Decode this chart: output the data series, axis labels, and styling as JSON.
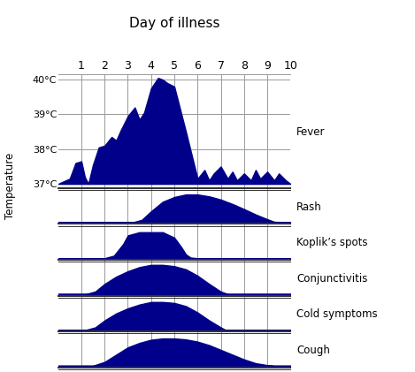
{
  "title": "Day of illness",
  "temp_ylabel": "Temperature",
  "day_labels": [
    "1",
    "2",
    "3",
    "4",
    "5",
    "6",
    "7",
    "8",
    "9",
    "10"
  ],
  "temp_yticks": [
    37,
    38,
    39,
    40
  ],
  "temp_ytick_labels": [
    "37°C",
    "38°C",
    "39°C",
    "40°C"
  ],
  "fill_color": "#00008B",
  "bg_color": "#ffffff",
  "grid_color": "#999999",
  "border_color": "#333333",
  "fever_x": [
    0.0,
    0.5,
    0.75,
    1.0,
    1.15,
    1.3,
    1.5,
    1.75,
    2.0,
    2.3,
    2.5,
    2.7,
    3.0,
    3.3,
    3.5,
    3.7,
    4.0,
    4.3,
    4.5,
    4.7,
    5.0,
    5.5,
    6.0,
    6.3,
    6.5,
    6.7,
    7.0,
    7.3,
    7.5,
    7.7,
    8.0,
    8.3,
    8.5,
    8.7,
    9.0,
    9.3,
    9.5,
    9.8,
    10.0
  ],
  "fever_y": [
    37.0,
    37.15,
    37.6,
    37.65,
    37.2,
    37.0,
    37.55,
    38.05,
    38.1,
    38.35,
    38.25,
    38.55,
    38.95,
    39.2,
    38.85,
    39.05,
    39.75,
    40.05,
    40.0,
    39.9,
    39.8,
    38.5,
    37.15,
    37.4,
    37.1,
    37.3,
    37.5,
    37.15,
    37.35,
    37.1,
    37.3,
    37.1,
    37.4,
    37.15,
    37.35,
    37.1,
    37.3,
    37.1,
    37.0
  ],
  "rash_x": [
    0,
    3.2,
    3.6,
    4.0,
    4.5,
    5.0,
    5.5,
    6.0,
    6.5,
    7.0,
    7.5,
    8.0,
    8.5,
    9.0,
    9.3,
    10
  ],
  "rash_y": [
    0,
    0,
    0.08,
    0.35,
    0.65,
    0.8,
    0.88,
    0.88,
    0.82,
    0.72,
    0.58,
    0.42,
    0.25,
    0.1,
    0.02,
    0
  ],
  "koplik_x": [
    0,
    2.0,
    2.4,
    2.8,
    3.0,
    3.5,
    4.0,
    4.5,
    5.0,
    5.3,
    5.5,
    5.7,
    6.0,
    10
  ],
  "koplik_y": [
    0,
    0,
    0.08,
    0.45,
    0.72,
    0.82,
    0.82,
    0.82,
    0.65,
    0.35,
    0.12,
    0.02,
    0.0,
    0
  ],
  "conjunctivitis_x": [
    0,
    1.2,
    1.6,
    2.0,
    2.5,
    3.0,
    3.5,
    4.0,
    4.5,
    5.0,
    5.5,
    6.0,
    6.5,
    7.0,
    7.3,
    10
  ],
  "conjunctivitis_y": [
    0,
    0,
    0.08,
    0.32,
    0.55,
    0.72,
    0.85,
    0.92,
    0.92,
    0.88,
    0.78,
    0.58,
    0.32,
    0.08,
    0.0,
    0
  ],
  "cold_x": [
    0,
    1.2,
    1.6,
    2.0,
    2.5,
    3.0,
    3.5,
    4.0,
    4.5,
    5.0,
    5.5,
    6.0,
    6.5,
    7.0,
    7.2,
    10
  ],
  "cold_y": [
    0,
    0,
    0.08,
    0.3,
    0.52,
    0.68,
    0.8,
    0.88,
    0.88,
    0.85,
    0.75,
    0.55,
    0.3,
    0.08,
    0.0,
    0
  ],
  "cough_x": [
    0,
    1.5,
    2.0,
    2.5,
    3.0,
    3.5,
    4.0,
    4.5,
    5.0,
    5.5,
    6.0,
    6.5,
    7.0,
    7.5,
    8.0,
    8.5,
    9.0,
    9.3,
    10
  ],
  "cough_y": [
    0,
    0,
    0.12,
    0.35,
    0.58,
    0.72,
    0.82,
    0.86,
    0.86,
    0.83,
    0.76,
    0.65,
    0.5,
    0.35,
    0.2,
    0.08,
    0.02,
    0.0,
    0
  ],
  "panel_labels": [
    "Fever",
    "Rash",
    "Koplik’s spots",
    "Conjunctivitis",
    "Cold symptoms",
    "Cough"
  ],
  "temp_ylim": [
    36.85,
    40.15
  ],
  "xlim": [
    0,
    10
  ]
}
